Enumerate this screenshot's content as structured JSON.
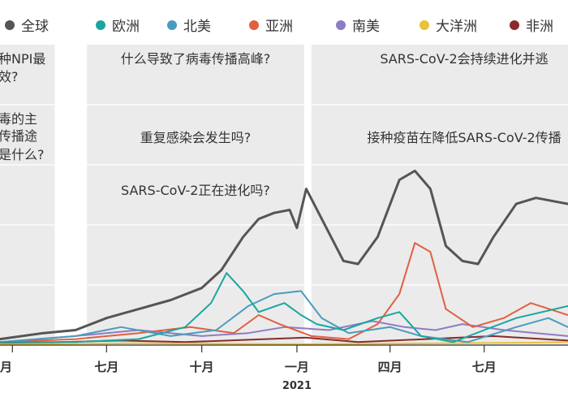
{
  "chart_data": {
    "type": "line",
    "title": "",
    "xlabel": "",
    "ylabel": "",
    "x_ticks": [
      {
        "label": "月",
        "date": "2020-04-01"
      },
      {
        "label": "七月",
        "date": "2020-07-01"
      },
      {
        "label": "十月",
        "date": "2020-10-01"
      },
      {
        "label": "一月",
        "date": "2021-01-01"
      },
      {
        "label": "四月",
        "date": "2021-04-01"
      },
      {
        "label": "七月",
        "date": "2021-07-01"
      }
    ],
    "year_label": "2021",
    "x_range": [
      "2020-03-20",
      "2021-09-20"
    ],
    "y_range": [
      0,
      100
    ],
    "grid": "horizontal",
    "legend_position": "top",
    "legend": [
      {
        "name": "全球",
        "color": "#555555"
      },
      {
        "name": "欧洲",
        "color": "#1aa6a0"
      },
      {
        "name": "北美",
        "color": "#4a9bc0"
      },
      {
        "name": "亚洲",
        "color": "#e06040"
      },
      {
        "name": "南美",
        "color": "#8e7cc3"
      },
      {
        "name": "大洋洲",
        "color": "#e8c23a"
      },
      {
        "name": "非洲",
        "color": "#8a2a2a"
      }
    ],
    "bands": [
      {
        "start": "2020-03-20",
        "end": "2020-05-12",
        "questions": [
          "种NPI最",
          "效?",
          "毒的主",
          "传播途",
          "是什么?"
        ]
      },
      {
        "start": "2020-06-12",
        "end": "2021-01-08",
        "questions": [
          "什么导致了病毒传播高峰?",
          "重复感染会发生吗?",
          "SARS-CoV-2正在进化吗?"
        ]
      },
      {
        "start": "2021-01-15",
        "end": "2021-09-20",
        "questions": [
          "SARS-CoV-2会持续进化并逃",
          "接种疫苗在降低SARS-CoV-2传播"
        ]
      }
    ],
    "series": [
      {
        "name": "全球",
        "color": "#555555",
        "points": [
          [
            "2020-03-20",
            2
          ],
          [
            "2020-05-01",
            4
          ],
          [
            "2020-06-01",
            5
          ],
          [
            "2020-07-01",
            9
          ],
          [
            "2020-08-01",
            12
          ],
          [
            "2020-09-01",
            15
          ],
          [
            "2020-10-01",
            19
          ],
          [
            "2020-10-20",
            25
          ],
          [
            "2020-11-10",
            36
          ],
          [
            "2020-11-25",
            42
          ],
          [
            "2020-12-10",
            44
          ],
          [
            "2020-12-25",
            45
          ],
          [
            "2021-01-01",
            39
          ],
          [
            "2021-01-10",
            52
          ],
          [
            "2021-01-25",
            42
          ],
          [
            "2021-02-15",
            28
          ],
          [
            "2021-03-01",
            27
          ],
          [
            "2021-03-20",
            36
          ],
          [
            "2021-04-10",
            55
          ],
          [
            "2021-04-25",
            58
          ],
          [
            "2021-05-10",
            52
          ],
          [
            "2021-05-25",
            33
          ],
          [
            "2021-06-10",
            28
          ],
          [
            "2021-06-25",
            27
          ],
          [
            "2021-07-10",
            36
          ],
          [
            "2021-08-01",
            47
          ],
          [
            "2021-08-20",
            49
          ],
          [
            "2021-09-20",
            47
          ]
        ]
      },
      {
        "name": "欧洲",
        "color": "#1aa6a0",
        "points": [
          [
            "2020-03-20",
            1
          ],
          [
            "2020-06-01",
            1
          ],
          [
            "2020-08-01",
            2
          ],
          [
            "2020-09-15",
            6
          ],
          [
            "2020-10-10",
            14
          ],
          [
            "2020-10-25",
            24
          ],
          [
            "2020-11-10",
            18
          ],
          [
            "2020-11-25",
            11
          ],
          [
            "2020-12-20",
            14
          ],
          [
            "2021-01-05",
            10
          ],
          [
            "2021-01-20",
            7
          ],
          [
            "2021-02-15",
            5
          ],
          [
            "2021-03-20",
            9
          ],
          [
            "2021-04-10",
            11
          ],
          [
            "2021-05-01",
            3
          ],
          [
            "2021-06-01",
            1
          ],
          [
            "2021-07-01",
            5
          ],
          [
            "2021-08-01",
            9
          ],
          [
            "2021-09-20",
            13
          ]
        ]
      },
      {
        "name": "北美",
        "color": "#4a9bc0",
        "points": [
          [
            "2020-03-20",
            1
          ],
          [
            "2020-06-01",
            3
          ],
          [
            "2020-07-15",
            6
          ],
          [
            "2020-09-01",
            3
          ],
          [
            "2020-10-15",
            5
          ],
          [
            "2020-11-15",
            13
          ],
          [
            "2020-12-10",
            17
          ],
          [
            "2021-01-05",
            18
          ],
          [
            "2021-01-25",
            9
          ],
          [
            "2021-02-20",
            4
          ],
          [
            "2021-04-01",
            6
          ],
          [
            "2021-05-01",
            3
          ],
          [
            "2021-06-15",
            1
          ],
          [
            "2021-08-01",
            6
          ],
          [
            "2021-09-01",
            9
          ],
          [
            "2021-09-20",
            6
          ]
        ]
      },
      {
        "name": "亚洲",
        "color": "#e06040",
        "points": [
          [
            "2020-03-20",
            1
          ],
          [
            "2020-06-01",
            2
          ],
          [
            "2020-08-01",
            4
          ],
          [
            "2020-09-20",
            6
          ],
          [
            "2020-11-01",
            4
          ],
          [
            "2020-11-25",
            10
          ],
          [
            "2020-12-15",
            7
          ],
          [
            "2021-01-15",
            3
          ],
          [
            "2021-02-20",
            2
          ],
          [
            "2021-03-20",
            7
          ],
          [
            "2021-04-10",
            17
          ],
          [
            "2021-04-25",
            34
          ],
          [
            "2021-05-10",
            31
          ],
          [
            "2021-05-25",
            12
          ],
          [
            "2021-06-20",
            6
          ],
          [
            "2021-07-20",
            9
          ],
          [
            "2021-08-15",
            14
          ],
          [
            "2021-09-20",
            10
          ]
        ]
      },
      {
        "name": "南美",
        "color": "#8e7cc3",
        "points": [
          [
            "2020-03-20",
            1
          ],
          [
            "2020-06-01",
            3
          ],
          [
            "2020-08-01",
            5
          ],
          [
            "2020-10-01",
            3
          ],
          [
            "2020-11-15",
            4
          ],
          [
            "2020-12-20",
            6
          ],
          [
            "2021-02-01",
            5
          ],
          [
            "2021-03-15",
            8
          ],
          [
            "2021-04-15",
            6
          ],
          [
            "2021-05-15",
            5
          ],
          [
            "2021-06-10",
            7
          ],
          [
            "2021-07-20",
            5
          ],
          [
            "2021-09-20",
            3
          ]
        ]
      },
      {
        "name": "大洋洲",
        "color": "#e8c23a",
        "points": [
          [
            "2020-03-20",
            0.3
          ],
          [
            "2020-08-01",
            0.6
          ],
          [
            "2021-01-01",
            0.3
          ],
          [
            "2021-08-15",
            0.8
          ],
          [
            "2021-09-20",
            1
          ]
        ]
      },
      {
        "name": "非洲",
        "color": "#8a2a2a",
        "points": [
          [
            "2020-03-20",
            0.5
          ],
          [
            "2020-07-15",
            1.5
          ],
          [
            "2020-09-15",
            1
          ],
          [
            "2021-01-10",
            2.5
          ],
          [
            "2021-03-01",
            1
          ],
          [
            "2021-07-10",
            3
          ],
          [
            "2021-09-20",
            1.5
          ]
        ]
      }
    ]
  }
}
